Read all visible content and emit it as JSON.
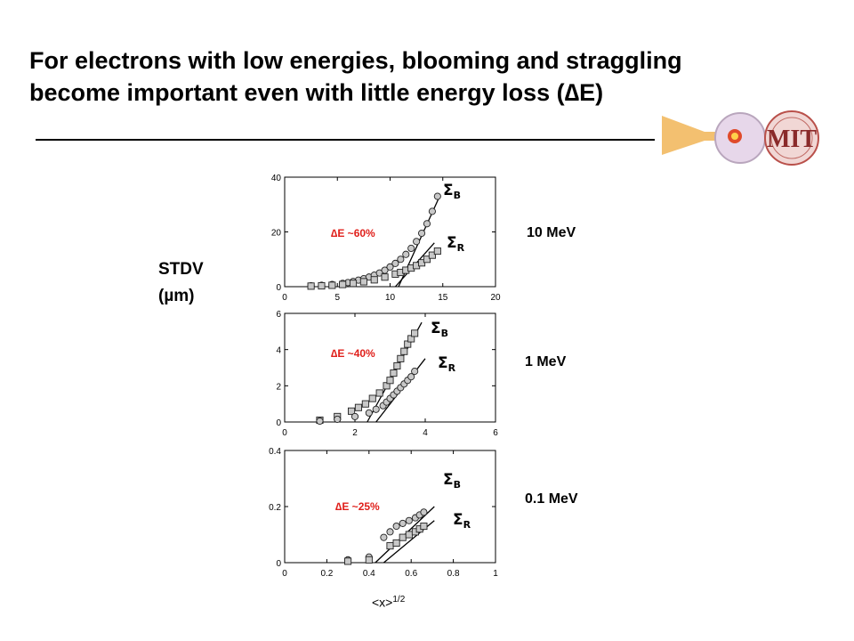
{
  "title_line1": "For electrons with low energies, blooming and straggling",
  "title_line2": "become important even with little energy loss (∆E)",
  "logo_text": "MIT",
  "y_label_line1": "STDV",
  "y_label_line2": "(µm)",
  "x_label_main": "<x>",
  "x_label_exp": "1/2",
  "colors": {
    "title": "#000000",
    "annotation": "#e0201b",
    "marker_fill": "#c8c8c8"
  },
  "chart_data": [
    {
      "type": "scatter",
      "energy_label": "10 MeV",
      "annotation": "∆E ~60%",
      "xlim": [
        0,
        20
      ],
      "ylim": [
        0,
        40
      ],
      "xticks": [
        "0",
        "5",
        "10",
        "15",
        "20"
      ],
      "yticks": [
        "0",
        "20",
        "40"
      ],
      "series": [
        {
          "name": "ΣB",
          "marker": "circle",
          "x": [
            2.5,
            3.5,
            4.5,
            5.5,
            6,
            6.5,
            7,
            7.5,
            8,
            8.5,
            9,
            9.5,
            10,
            10.5,
            11,
            11.5,
            12,
            12.5,
            13,
            13.5,
            14,
            14.5
          ],
          "y": [
            0.3,
            0.5,
            0.8,
            1.2,
            1.5,
            1.9,
            2.4,
            2.9,
            3.5,
            4.2,
            5,
            6,
            7.2,
            8.5,
            10,
            11.8,
            14,
            16.5,
            19.5,
            23,
            27.5,
            33
          ],
          "fit": [
            [
              10.8,
              0
            ],
            [
              14.7,
              33
            ]
          ]
        },
        {
          "name": "ΣR",
          "marker": "square",
          "x": [
            2.5,
            3.5,
            4.5,
            5.5,
            6.5,
            7.5,
            8.5,
            9.5,
            10.5,
            11,
            11.5,
            12,
            12.5,
            13,
            13.5,
            14,
            14.5
          ],
          "y": [
            0.2,
            0.3,
            0.5,
            0.8,
            1.2,
            1.8,
            2.5,
            3.5,
            4.6,
            5.2,
            6,
            6.8,
            7.7,
            8.7,
            10,
            11.5,
            13
          ],
          "fit": [
            [
              10.5,
              0
            ],
            [
              14.2,
              16
            ]
          ]
        }
      ]
    },
    {
      "type": "scatter",
      "energy_label": "1 MeV",
      "annotation": "∆E ~40%",
      "xlim": [
        0,
        6
      ],
      "ylim": [
        0,
        6
      ],
      "xticks": [
        "0",
        "2",
        "4",
        "6"
      ],
      "yticks": [
        "0",
        "2",
        "4",
        "6"
      ],
      "series": [
        {
          "name": "ΣB",
          "marker": "square",
          "x": [
            1,
            1.5,
            1.9,
            2.1,
            2.3,
            2.5,
            2.7,
            2.9,
            3.0,
            3.1,
            3.2,
            3.3,
            3.4,
            3.5,
            3.6,
            3.7
          ],
          "y": [
            0.1,
            0.3,
            0.6,
            0.8,
            1.0,
            1.3,
            1.6,
            2.0,
            2.3,
            2.7,
            3.1,
            3.5,
            3.9,
            4.3,
            4.6,
            4.9
          ],
          "fit": [
            [
              2.35,
              0
            ],
            [
              3.9,
              5.5
            ]
          ]
        },
        {
          "name": "ΣR",
          "marker": "circle",
          "x": [
            1,
            1.5,
            2.0,
            2.4,
            2.6,
            2.8,
            2.9,
            3.0,
            3.1,
            3.2,
            3.3,
            3.4,
            3.5,
            3.6,
            3.7
          ],
          "y": [
            0.05,
            0.15,
            0.3,
            0.5,
            0.7,
            0.9,
            1.1,
            1.3,
            1.5,
            1.7,
            1.9,
            2.1,
            2.3,
            2.5,
            2.8
          ],
          "fit": [
            [
              2.6,
              0
            ],
            [
              4.0,
              3.5
            ]
          ]
        }
      ]
    },
    {
      "type": "scatter",
      "energy_label": "0.1 MeV",
      "annotation": "∆E ~25%",
      "xlim": [
        0,
        1
      ],
      "ylim": [
        0,
        0.4
      ],
      "xticks": [
        "0",
        "0.2",
        "0.4",
        "0.6",
        "0.8",
        "1"
      ],
      "yticks": [
        "0",
        "0.2",
        "0.4"
      ],
      "series": [
        {
          "name": "ΣB",
          "marker": "circle",
          "x": [
            0.3,
            0.4,
            0.47,
            0.5,
            0.53,
            0.56,
            0.59,
            0.62,
            0.64,
            0.66
          ],
          "y": [
            0.01,
            0.02,
            0.09,
            0.11,
            0.13,
            0.14,
            0.15,
            0.16,
            0.17,
            0.18
          ],
          "fit": [
            [
              0.43,
              0
            ],
            [
              0.71,
              0.2
            ]
          ]
        },
        {
          "name": "ΣR",
          "marker": "square",
          "x": [
            0.3,
            0.4,
            0.5,
            0.53,
            0.56,
            0.59,
            0.62,
            0.64,
            0.66
          ],
          "y": [
            0.005,
            0.01,
            0.06,
            0.07,
            0.09,
            0.1,
            0.11,
            0.12,
            0.13
          ],
          "fit": [
            [
              0.47,
              0
            ],
            [
              0.71,
              0.15
            ]
          ]
        }
      ]
    }
  ]
}
